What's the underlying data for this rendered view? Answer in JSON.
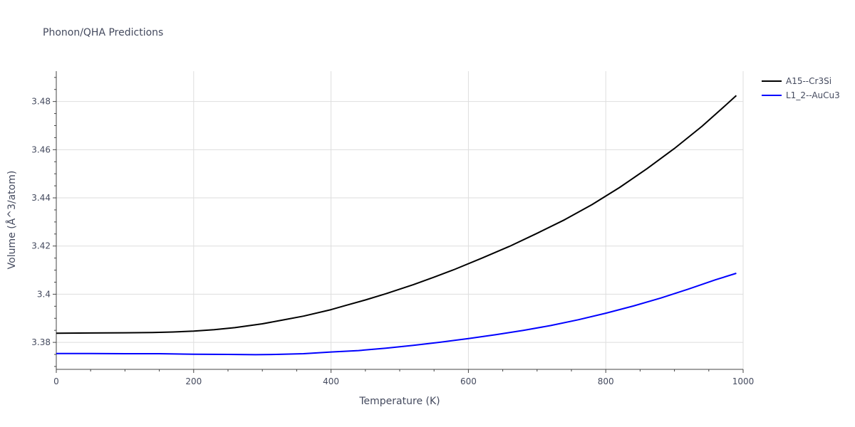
{
  "chart_data": {
    "type": "line",
    "title": "Phonon/QHA Predictions",
    "xlabel": "Temperature (K)",
    "ylabel": "Volume (Å^3/atom)",
    "xlim": [
      0,
      1000
    ],
    "ylim": [
      3.3688,
      3.4926
    ],
    "x_ticks": [
      0,
      200,
      400,
      600,
      800,
      1000
    ],
    "x_tick_labels": [
      "0",
      "200",
      "400",
      "600",
      "800",
      "1000"
    ],
    "y_ticks": [
      3.38,
      3.4,
      3.42,
      3.44,
      3.46,
      3.48
    ],
    "y_tick_labels": [
      "3.38",
      "3.4",
      "3.42",
      "3.44",
      "3.46",
      "3.48"
    ],
    "grid": true,
    "legend_position": "top-right-outside",
    "series": [
      {
        "name": "A15--Cr3Si",
        "color": "#000000",
        "x": [
          0,
          50,
          100,
          140,
          170,
          200,
          230,
          260,
          300,
          330,
          360,
          400,
          420,
          450,
          480,
          520,
          550,
          580,
          620,
          660,
          700,
          740,
          780,
          820,
          860,
          900,
          940,
          970,
          990
        ],
        "y": [
          3.3838,
          3.3839,
          3.384,
          3.3841,
          3.3843,
          3.3847,
          3.3853,
          3.3861,
          3.3877,
          3.3893,
          3.3909,
          3.3936,
          3.3952,
          3.3976,
          3.4002,
          3.404,
          3.4071,
          3.4103,
          3.415,
          3.4199,
          3.4253,
          3.4309,
          3.4372,
          3.4443,
          3.4521,
          3.4605,
          3.4697,
          3.4773,
          3.4825
        ]
      },
      {
        "name": "L1_2--AuCu3",
        "color": "#0000ff",
        "x": [
          0,
          50,
          100,
          150,
          200,
          250,
          290,
          320,
          360,
          400,
          440,
          480,
          520,
          560,
          600,
          640,
          680,
          720,
          760,
          800,
          840,
          880,
          920,
          960,
          990
        ],
        "y": [
          3.3754,
          3.3754,
          3.3753,
          3.3753,
          3.3751,
          3.375,
          3.3749,
          3.375,
          3.3753,
          3.376,
          3.3766,
          3.3776,
          3.3788,
          3.3801,
          3.3816,
          3.3832,
          3.385,
          3.387,
          3.3894,
          3.3921,
          3.3951,
          3.3984,
          3.4021,
          3.406,
          3.4087
        ]
      }
    ]
  }
}
